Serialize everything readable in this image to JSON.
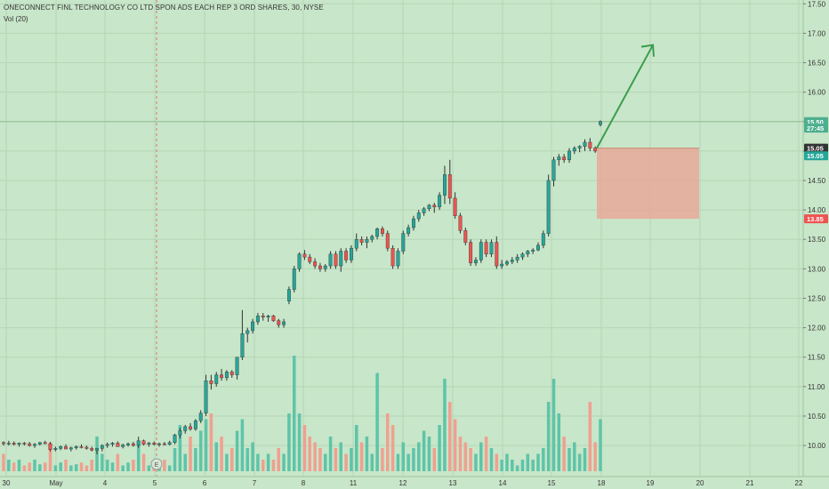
{
  "header": {
    "title": "ONECONNECT FINL TECHNOLOGY CO LTD SPON ADS EACH REP 3 ORD SHARES, 30, NYSE",
    "volume_label": "Vol (20)"
  },
  "price_axis": {
    "ticks": [
      "17.50",
      "17.00",
      "16.50",
      "16.00",
      "15.50",
      "15.00",
      "14.50",
      "14.00",
      "13.50",
      "13.00",
      "12.50",
      "12.00",
      "11.50",
      "11.00",
      "10.50",
      "10.00"
    ],
    "tick_values": [
      17.5,
      17.0,
      16.5,
      16.0,
      15.5,
      15.0,
      14.5,
      14.0,
      13.5,
      13.0,
      12.5,
      12.0,
      11.5,
      11.0,
      10.5,
      10.0
    ],
    "price_tags": [
      {
        "label": "15.50",
        "value": 15.5,
        "color": "#4caf8e"
      },
      {
        "label": "27:45",
        "value": 15.39,
        "color": "#4caf8e"
      },
      {
        "label": "15.05",
        "value": 15.05,
        "color": "#333333"
      },
      {
        "label": "15.05",
        "value": 14.92,
        "color": "#26a69a"
      },
      {
        "label": "13.85",
        "value": 13.85,
        "color": "#ef5350"
      }
    ]
  },
  "time_axis": {
    "labels": [
      "30",
      "May",
      "4",
      "5",
      "6",
      "7",
      "8",
      "11",
      "12",
      "13",
      "14",
      "15",
      "18",
      "19",
      "20",
      "21",
      "22"
    ]
  },
  "earnings_marker": {
    "label": "E"
  },
  "colors": {
    "background": "#c8e6c9",
    "up": "#26a69a",
    "down": "#ef5350",
    "wick": "#333333",
    "volume_up": "#5ec4a8",
    "volume_down": "#f0a090",
    "arrow": "#3a9d4d",
    "zone": "#e8a899"
  },
  "chart_data": {
    "type": "candlestick",
    "title": "ONECONNECT FINL TECHNOLOGY CO LTD SPON ADS EACH REP 3 ORD SHARES, 30, NYSE",
    "interval": "30",
    "exchange": "NYSE",
    "ylim": [
      9.85,
      17.55
    ],
    "current_price": 15.5,
    "countdown": "27:45",
    "candles_ohlc": [
      [
        10.05,
        10.07,
        10.0,
        10.03
      ],
      [
        10.03,
        10.08,
        10.0,
        10.04
      ],
      [
        10.04,
        10.07,
        10.0,
        10.02
      ],
      [
        10.02,
        10.05,
        9.98,
        10.04
      ],
      [
        10.04,
        10.06,
        10.0,
        10.03
      ],
      [
        10.03,
        10.06,
        9.98,
        10.0
      ],
      [
        10.0,
        10.04,
        9.96,
        10.02
      ],
      [
        10.02,
        10.06,
        10.0,
        10.05
      ],
      [
        10.05,
        10.08,
        10.02,
        10.03
      ],
      [
        10.03,
        10.06,
        9.9,
        9.93
      ],
      [
        9.93,
        9.98,
        9.9,
        9.95
      ],
      [
        9.95,
        10.0,
        9.92,
        9.98
      ],
      [
        9.98,
        10.02,
        9.95,
        9.94
      ],
      [
        9.94,
        9.98,
        9.9,
        9.96
      ],
      [
        9.96,
        10.0,
        9.93,
        9.98
      ],
      [
        9.98,
        10.02,
        9.95,
        9.97
      ],
      [
        9.97,
        10.0,
        9.93,
        9.95
      ],
      [
        9.95,
        9.98,
        9.9,
        9.92
      ],
      [
        9.92,
        9.96,
        9.85,
        9.95
      ],
      [
        9.95,
        10.02,
        9.9,
        10.0
      ],
      [
        10.0,
        10.05,
        9.96,
        10.02
      ],
      [
        10.02,
        10.06,
        9.98,
        10.04
      ],
      [
        10.04,
        10.07,
        10.0,
        9.98
      ],
      [
        9.98,
        10.03,
        9.95,
        10.01
      ],
      [
        10.01,
        10.05,
        9.98,
        10.03
      ],
      [
        10.03,
        10.06,
        9.98,
        10.0
      ],
      [
        10.0,
        10.15,
        9.96,
        10.08
      ],
      [
        10.08,
        10.1,
        10.0,
        10.02
      ],
      [
        10.02,
        10.06,
        9.98,
        10.04
      ],
      [
        10.04,
        10.07,
        10.0,
        10.02
      ],
      [
        10.02,
        10.05,
        9.98,
        10.03
      ],
      [
        10.03,
        10.06,
        10.0,
        10.02
      ],
      [
        10.02,
        10.08,
        10.0,
        10.05
      ],
      [
        10.05,
        10.2,
        10.02,
        10.18
      ],
      [
        10.18,
        10.3,
        10.12,
        10.25
      ],
      [
        10.25,
        10.35,
        10.2,
        10.32
      ],
      [
        10.32,
        10.38,
        10.25,
        10.28
      ],
      [
        10.28,
        10.45,
        10.25,
        10.42
      ],
      [
        10.42,
        10.6,
        10.38,
        10.55
      ],
      [
        10.55,
        11.2,
        10.5,
        11.1
      ],
      [
        11.1,
        11.2,
        10.95,
        11.05
      ],
      [
        11.05,
        11.25,
        11.0,
        11.2
      ],
      [
        11.2,
        11.3,
        11.1,
        11.15
      ],
      [
        11.15,
        11.28,
        11.1,
        11.25
      ],
      [
        11.25,
        11.28,
        11.15,
        11.2
      ],
      [
        11.2,
        11.35,
        11.12,
        11.5
      ],
      [
        11.5,
        12.3,
        11.45,
        11.9
      ],
      [
        11.9,
        12.0,
        11.75,
        11.95
      ],
      [
        11.95,
        12.15,
        11.9,
        12.1
      ],
      [
        12.1,
        12.25,
        12.05,
        12.2
      ],
      [
        12.2,
        12.25,
        12.12,
        12.18
      ],
      [
        12.18,
        12.22,
        12.1,
        12.2
      ],
      [
        12.2,
        12.22,
        12.1,
        12.12
      ],
      [
        12.12,
        12.15,
        12.0,
        12.05
      ],
      [
        12.05,
        12.15,
        12.0,
        12.1
      ],
      [
        12.45,
        12.7,
        12.4,
        12.65
      ],
      [
        12.65,
        13.05,
        12.6,
        13.0
      ],
      [
        13.0,
        13.28,
        12.95,
        13.25
      ],
      [
        13.25,
        13.32,
        13.15,
        13.2
      ],
      [
        13.2,
        13.25,
        13.08,
        13.12
      ],
      [
        13.12,
        13.18,
        13.0,
        13.05
      ],
      [
        13.05,
        13.1,
        12.95,
        13.0
      ],
      [
        13.0,
        13.08,
        12.95,
        13.05
      ],
      [
        13.05,
        13.3,
        13.0,
        13.25
      ],
      [
        13.25,
        13.3,
        13.0,
        13.05
      ],
      [
        13.05,
        13.35,
        12.95,
        13.3
      ],
      [
        13.3,
        13.35,
        13.1,
        13.15
      ],
      [
        13.15,
        13.4,
        13.1,
        13.35
      ],
      [
        13.35,
        13.6,
        13.3,
        13.5
      ],
      [
        13.5,
        13.55,
        13.4,
        13.45
      ],
      [
        13.45,
        13.55,
        13.35,
        13.5
      ],
      [
        13.5,
        13.58,
        13.45,
        13.55
      ],
      [
        13.55,
        13.7,
        13.5,
        13.68
      ],
      [
        13.68,
        13.72,
        13.55,
        13.6
      ],
      [
        13.6,
        13.65,
        13.3,
        13.35
      ],
      [
        13.35,
        13.4,
        13.0,
        13.05
      ],
      [
        13.05,
        13.35,
        13.0,
        13.3
      ],
      [
        13.3,
        13.65,
        13.25,
        13.6
      ],
      [
        13.6,
        13.75,
        13.55,
        13.7
      ],
      [
        13.7,
        13.9,
        13.65,
        13.85
      ],
      [
        13.85,
        14.0,
        13.8,
        13.95
      ],
      [
        13.95,
        14.05,
        13.9,
        14.02
      ],
      [
        14.02,
        14.1,
        13.98,
        14.08
      ],
      [
        14.08,
        14.12,
        13.95,
        14.05
      ],
      [
        14.05,
        14.3,
        14.0,
        14.25
      ],
      [
        14.25,
        14.75,
        14.1,
        14.6
      ],
      [
        14.6,
        14.85,
        14.1,
        14.2
      ],
      [
        14.2,
        14.3,
        13.85,
        13.9
      ],
      [
        13.9,
        13.95,
        13.6,
        13.65
      ],
      [
        13.65,
        13.7,
        13.4,
        13.45
      ],
      [
        13.45,
        13.5,
        13.05,
        13.1
      ],
      [
        13.1,
        13.2,
        13.05,
        13.15
      ],
      [
        13.15,
        13.5,
        13.1,
        13.45
      ],
      [
        13.45,
        13.5,
        13.2,
        13.25
      ],
      [
        13.25,
        13.5,
        13.2,
        13.45
      ],
      [
        13.45,
        13.55,
        13.0,
        13.05
      ],
      [
        13.05,
        13.15,
        13.0,
        13.08
      ],
      [
        13.08,
        13.15,
        13.05,
        13.12
      ],
      [
        13.12,
        13.2,
        13.08,
        13.15
      ],
      [
        13.15,
        13.25,
        13.1,
        13.2
      ],
      [
        13.2,
        13.28,
        13.15,
        13.25
      ],
      [
        13.25,
        13.32,
        13.2,
        13.3
      ],
      [
        13.3,
        13.35,
        13.25,
        13.32
      ],
      [
        13.32,
        13.45,
        13.3,
        13.4
      ],
      [
        13.4,
        13.65,
        13.35,
        13.6
      ],
      [
        13.6,
        14.6,
        13.55,
        14.5
      ],
      [
        14.5,
        14.9,
        14.4,
        14.85
      ],
      [
        14.85,
        14.95,
        14.75,
        14.9
      ],
      [
        14.9,
        14.95,
        14.8,
        14.85
      ],
      [
        14.85,
        15.05,
        14.8,
        15.0
      ],
      [
        15.0,
        15.08,
        14.95,
        15.05
      ],
      [
        15.05,
        15.1,
        14.98,
        15.08
      ],
      [
        15.08,
        15.2,
        15.0,
        15.15
      ],
      [
        15.15,
        15.22,
        15.0,
        15.05
      ],
      [
        15.05,
        15.08,
        14.97,
        15.0
      ],
      [
        15.45,
        15.52,
        15.42,
        15.5
      ]
    ],
    "volume_relative": [
      0.3,
      0.2,
      0.15,
      0.2,
      0.1,
      0.15,
      0.2,
      0.12,
      0.15,
      0.5,
      0.1,
      0.15,
      0.2,
      0.1,
      0.12,
      0.15,
      0.1,
      0.2,
      0.6,
      0.3,
      0.2,
      0.15,
      0.3,
      0.1,
      0.15,
      0.2,
      0.5,
      0.3,
      0.1,
      0.15,
      0.1,
      0.2,
      0.1,
      0.4,
      0.8,
      0.3,
      0.6,
      0.4,
      0.7,
      0.9,
      1.0,
      0.5,
      0.6,
      0.3,
      0.4,
      0.7,
      0.9,
      0.4,
      0.5,
      0.3,
      0.2,
      0.3,
      0.2,
      0.4,
      0.3,
      1.0,
      2.0,
      1.0,
      0.8,
      0.6,
      0.5,
      0.4,
      0.3,
      0.6,
      0.4,
      0.5,
      0.3,
      0.4,
      0.8,
      0.5,
      0.6,
      0.3,
      1.7,
      0.4,
      1.0,
      0.8,
      0.3,
      0.5,
      0.3,
      0.4,
      0.5,
      0.7,
      0.6,
      0.4,
      0.8,
      1.6,
      1.2,
      0.9,
      0.6,
      0.5,
      0.4,
      0.3,
      0.5,
      0.6,
      0.4,
      0.3,
      0.2,
      0.3,
      0.2,
      0.1,
      0.2,
      0.3,
      0.2,
      0.3,
      0.4,
      1.2,
      1.6,
      1.0,
      0.6,
      0.4,
      0.5,
      0.3,
      0.4,
      1.2,
      0.5,
      0.9
    ],
    "annotations": {
      "arrow": {
        "from": 15.05,
        "to": 16.8,
        "direction": "up"
      },
      "stop_zone": {
        "top": 15.05,
        "bottom": 13.85,
        "label": "13.85"
      },
      "horizontal_line": 15.5
    }
  }
}
